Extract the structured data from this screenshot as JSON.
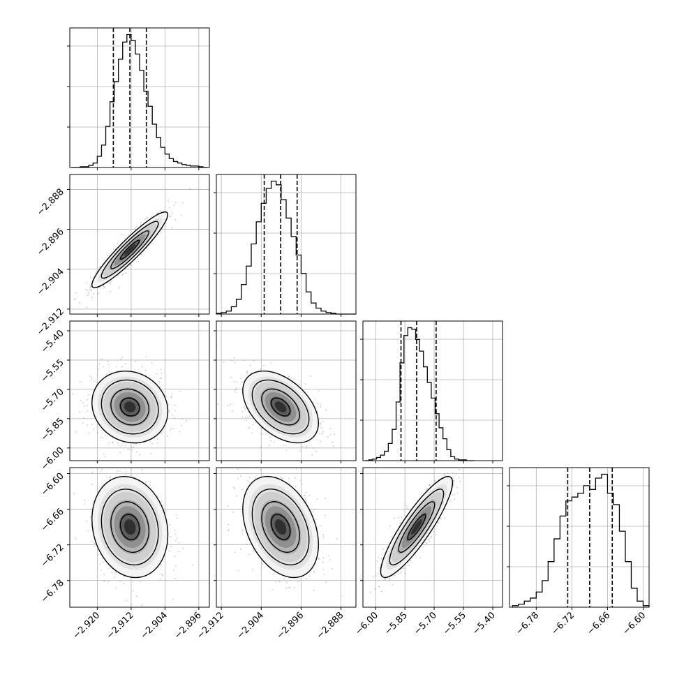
{
  "chart_data": {
    "type": "corner",
    "title": "",
    "grid": true,
    "parameters": [
      {
        "range": [
          -2.9265,
          -2.8935
        ],
        "ticks": [
          -2.92,
          -2.912,
          -2.904,
          -2.896
        ],
        "tick_labels": [
          "−2.920",
          "−2.912",
          "−2.904",
          "−2.896"
        ],
        "quantiles": [
          -2.9162,
          -2.9123,
          -2.9084
        ],
        "hist_centers": [
          -2.9255,
          -2.9245,
          -2.9235,
          -2.9225,
          -2.9215,
          -2.9205,
          -2.9195,
          -2.9185,
          -2.9175,
          -2.9165,
          -2.9155,
          -2.9145,
          -2.9135,
          -2.9125,
          -2.9115,
          -2.9105,
          -2.9095,
          -2.9085,
          -2.9075,
          -2.9065,
          -2.9055,
          -2.9045,
          -2.9035,
          -2.9025,
          -2.9015,
          -2.9005,
          -2.8995,
          -2.8985,
          -2.8975,
          -2.8965,
          -2.8955,
          -2.8945
        ],
        "hist_counts": [
          0,
          0,
          1,
          1,
          3,
          6,
          15,
          30,
          55,
          88,
          115,
          145,
          168,
          178,
          170,
          152,
          130,
          102,
          82,
          58,
          40,
          27,
          18,
          12,
          8,
          6,
          4,
          3,
          2,
          2,
          1,
          0
        ]
      },
      {
        "range": [
          -2.913,
          -2.885
        ],
        "ticks": [
          -2.912,
          -2.904,
          -2.896,
          -2.888
        ],
        "tick_labels": [
          "−2.912",
          "−2.904",
          "−2.896",
          "−2.888"
        ],
        "quantiles": [
          -2.9034,
          -2.9001,
          -2.8968
        ],
        "hist_centers": [
          -2.9125,
          -2.9115,
          -2.9105,
          -2.9095,
          -2.9085,
          -2.9075,
          -2.9065,
          -2.9055,
          -2.9045,
          -2.9035,
          -2.9025,
          -2.9015,
          -2.9005,
          -2.8995,
          -2.8985,
          -2.8975,
          -2.8965,
          -2.8955,
          -2.8945,
          -2.8935,
          -2.8925,
          -2.8915,
          -2.8905,
          -2.8895,
          -2.8885,
          -2.8875,
          -2.8865,
          -2.8855
        ],
        "hist_counts": [
          1,
          2,
          4,
          10,
          20,
          40,
          65,
          95,
          125,
          150,
          170,
          180,
          175,
          155,
          130,
          105,
          80,
          55,
          30,
          15,
          8,
          4,
          2,
          1,
          0,
          0,
          0,
          0
        ]
      },
      {
        "range": [
          -6.065,
          -5.35
        ],
        "ticks": [
          -6.0,
          -5.85,
          -5.7,
          -5.55,
          -5.4
        ],
        "tick_labels": [
          "−6.00",
          "−5.85",
          "−5.70",
          "−5.55",
          "−5.40"
        ],
        "quantiles": [
          -5.87,
          -5.79,
          -5.69
        ],
        "hist_centers": [
          -6.045,
          -6.025,
          -6.005,
          -5.985,
          -5.965,
          -5.945,
          -5.925,
          -5.905,
          -5.885,
          -5.865,
          -5.845,
          -5.825,
          -5.805,
          -5.785,
          -5.765,
          -5.745,
          -5.725,
          -5.705,
          -5.685,
          -5.665,
          -5.645,
          -5.625,
          -5.605,
          -5.585,
          -5.565,
          -5.545,
          -5.525,
          -5.505
        ],
        "hist_counts": [
          0,
          1,
          2,
          4,
          7,
          12,
          22,
          40,
          75,
          125,
          160,
          170,
          168,
          155,
          140,
          120,
          100,
          80,
          60,
          42,
          28,
          14,
          5,
          2,
          1,
          1,
          0,
          0
        ],
        "hist_range": [
          -6.055,
          -5.495
        ]
      },
      {
        "range": [
          -6.825,
          -6.59
        ],
        "ticks": [
          -6.78,
          -6.72,
          -6.66,
          -6.6
        ],
        "tick_labels": [
          "−6.78",
          "−6.72",
          "−6.66",
          "−6.60"
        ],
        "quantiles": [
          -6.727,
          -6.69,
          -6.652
        ],
        "hist_centers": [
          -6.815,
          -6.805,
          -6.795,
          -6.785,
          -6.775,
          -6.765,
          -6.755,
          -6.745,
          -6.735,
          -6.725,
          -6.715,
          -6.705,
          -6.695,
          -6.685,
          -6.675,
          -6.665,
          -6.655,
          -6.645,
          -6.635,
          -6.625,
          -6.615,
          -6.605,
          -6.595
        ],
        "hist_counts": [
          2,
          4,
          8,
          12,
          20,
          35,
          60,
          90,
          120,
          140,
          145,
          150,
          160,
          155,
          170,
          175,
          150,
          135,
          100,
          60,
          25,
          8,
          2
        ]
      }
    ],
    "pairs": [
      {
        "x_param": 0,
        "y_param": 1,
        "center": [
          -2.9123,
          -2.9001
        ],
        "sd": [
          0.0039,
          0.0033
        ],
        "rho": 0.93
      },
      {
        "x_param": 0,
        "y_param": 2,
        "center": [
          -2.9123,
          -5.79
        ],
        "sd": [
          0.0039,
          0.08
        ],
        "rho": -0.12
      },
      {
        "x_param": 1,
        "y_param": 2,
        "center": [
          -2.9001,
          -5.79
        ],
        "sd": [
          0.0033,
          0.08
        ],
        "rho": -0.45
      },
      {
        "x_param": 0,
        "y_param": 3,
        "center": [
          -2.9123,
          -6.69
        ],
        "sd": [
          0.0039,
          0.037
        ],
        "rho": -0.15
      },
      {
        "x_param": 1,
        "y_param": 3,
        "center": [
          -2.9001,
          -6.69
        ],
        "sd": [
          0.0033,
          0.037
        ],
        "rho": -0.35
      },
      {
        "x_param": 2,
        "y_param": 3,
        "center": [
          -5.79,
          -6.69
        ],
        "sd": [
          0.08,
          0.037
        ],
        "rho": 0.88
      }
    ],
    "contour_levels_sigma": [
      0.5,
      1.0,
      1.5,
      2.0
    ]
  }
}
